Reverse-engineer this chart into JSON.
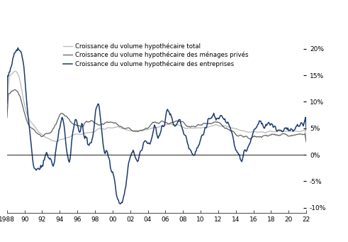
{
  "legend_labels": [
    "Croissance du volume hypothécaire total",
    "Croissance du volume hypothécaire des ménages privés",
    "Croissance du volume hypothécaire des entreprises"
  ],
  "colors": {
    "total": "#b8b8b8",
    "menages": "#606060",
    "entreprises": "#1a3a6e"
  },
  "ylim": [
    -0.11,
    0.21
  ],
  "yticks": [
    -0.1,
    -0.05,
    0.0,
    0.05,
    0.1,
    0.15,
    0.2
  ],
  "year_start": 1988,
  "year_end": 2022,
  "xtick_labels": [
    "1988",
    "90",
    "92",
    "94",
    "96",
    "98",
    "00",
    "02",
    "04",
    "06",
    "08",
    "10",
    "12",
    "14",
    "16",
    "18",
    "20",
    "22"
  ],
  "background_color": "#ffffff",
  "linewidth_total": 0.9,
  "linewidth_menages": 0.9,
  "linewidth_entreprises": 1.1
}
